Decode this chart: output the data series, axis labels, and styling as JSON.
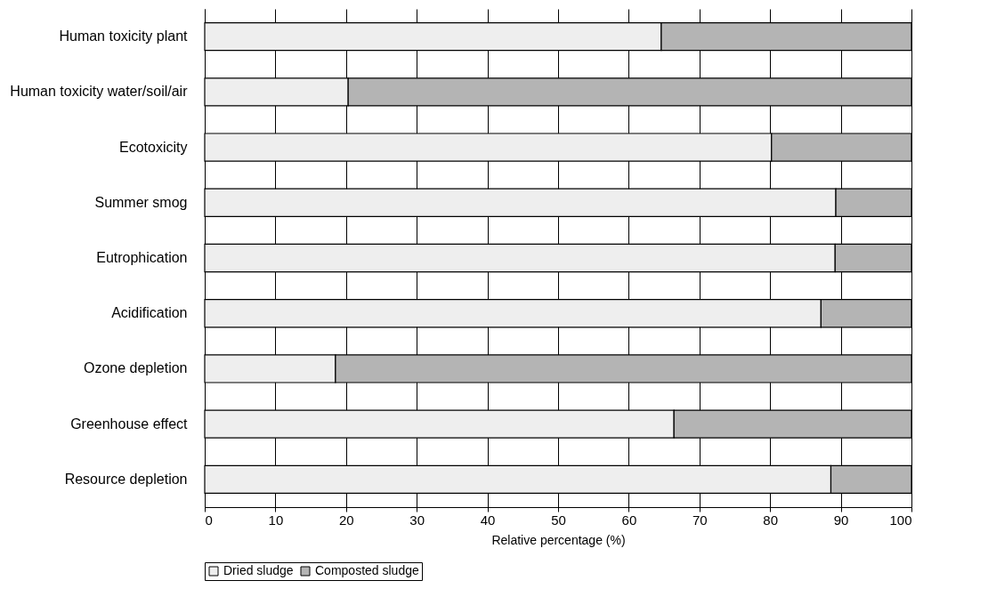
{
  "chart_data": {
    "type": "bar",
    "orientation": "horizontal",
    "stacked": true,
    "xlabel": "Relative percentage (%)",
    "categories": [
      "Human toxicity plant",
      "Human toxicity water/soil/air",
      "Ecotoxicity",
      "Summer smog",
      "Eutrophication",
      "Acidification",
      "Ozone depletion",
      "Greenhouse effect",
      "Resource depletion"
    ],
    "series": [
      {
        "name": "Dried sludge",
        "color": "#eeeeee",
        "values": [
          64.6,
          20.3,
          80.2,
          89.3,
          89.2,
          87.2,
          18.5,
          66.4,
          88.6
        ]
      },
      {
        "name": "Composted sludge",
        "color": "#b4b4b4",
        "values": [
          35.4,
          79.7,
          19.8,
          10.7,
          10.8,
          12.8,
          81.5,
          33.6,
          11.4
        ]
      }
    ],
    "xlim": [
      0,
      100
    ],
    "xticks": [
      0,
      10,
      20,
      30,
      40,
      50,
      60,
      70,
      80,
      90,
      100
    ],
    "grid": "x",
    "legend": "bottom"
  }
}
